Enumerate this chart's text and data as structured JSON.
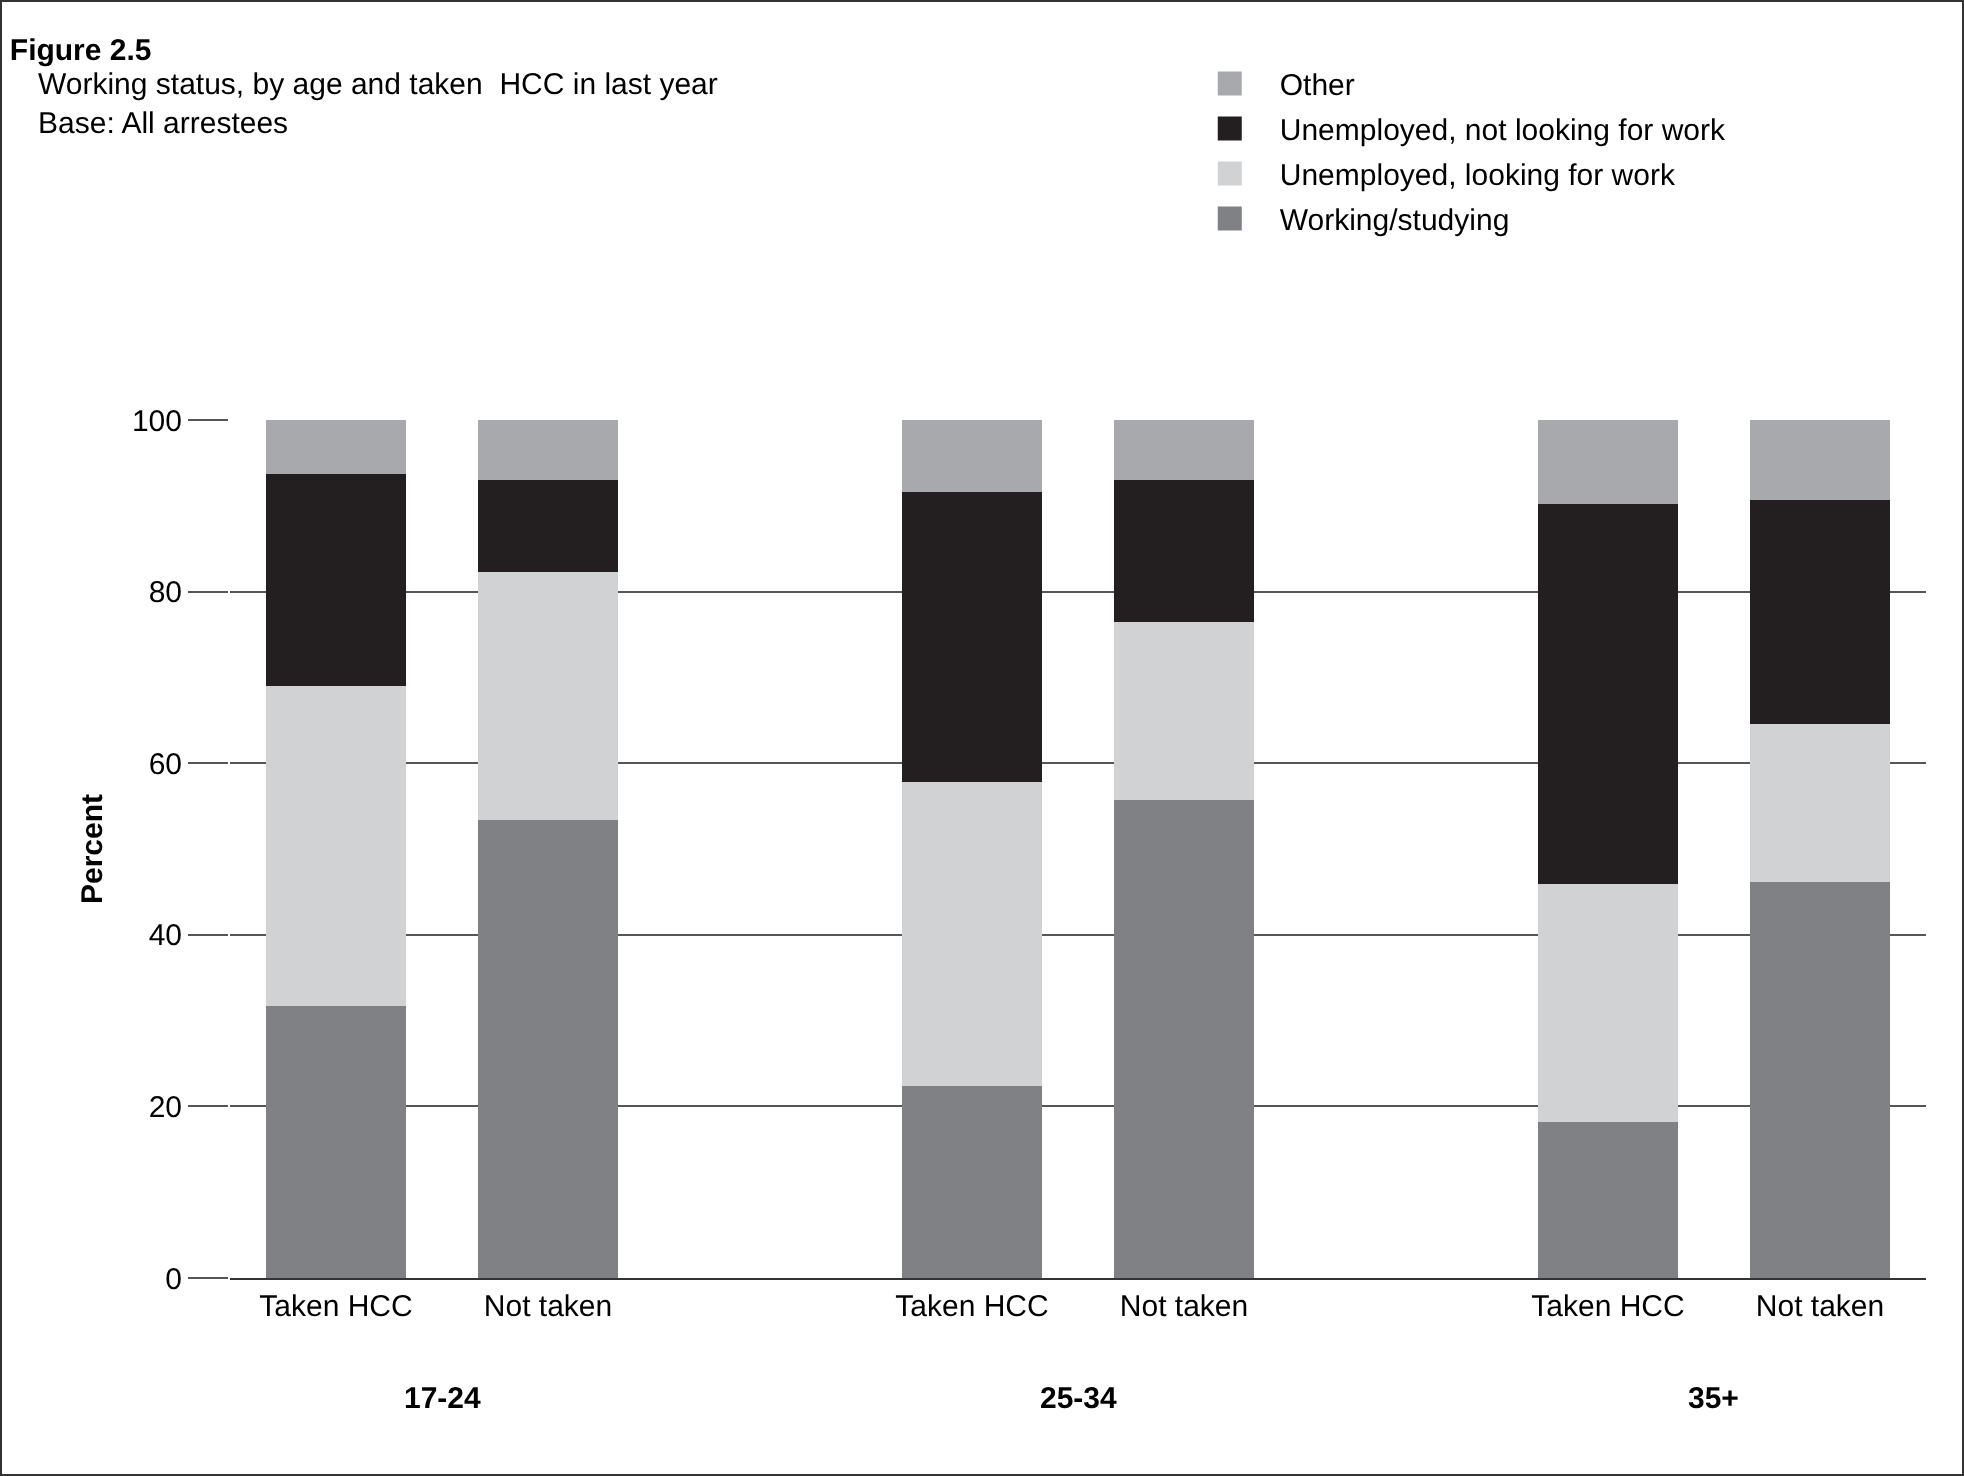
{
  "chart_data": {
    "type": "bar",
    "stacked": true,
    "title": "Figure 2.5",
    "subtitle": "Working status, by age and taken  HCC in last year\nBase: All arrestees",
    "ylabel": "Percent",
    "categories": [
      "Taken HCC",
      "Not taken",
      null,
      "Taken HCC",
      "Not taken",
      null,
      "Taken HCC",
      "Not taken"
    ],
    "series": [
      {
        "name": "Working/studying",
        "color": "#808184",
        "values": [
          31.6,
          53.4,
          null,
          22.3,
          55.7,
          null,
          18.1,
          46.2
        ]
      },
      {
        "name": "Unemployed, looking for work",
        "color": "#d1d2d4",
        "values": [
          37.4,
          29.0,
          null,
          35.5,
          20.7,
          null,
          27.9,
          18.4
        ]
      },
      {
        "name": "Unemployed, not looking for work",
        "color": "#231f20",
        "values": [
          24.6,
          10.5,
          null,
          33.9,
          16.7,
          null,
          44.1,
          26.0
        ]
      },
      {
        "name": "Other",
        "color": "#a7a9ac",
        "values": [
          6.4,
          7.1,
          null,
          8.3,
          6.9,
          null,
          9.9,
          9.4
        ]
      }
    ],
    "annotations": [
      "17-24",
      "25-34",
      "35+"
    ],
    "ylim": [
      0,
      100
    ],
    "yticks": [
      0,
      20,
      40,
      60,
      80,
      100
    ],
    "grid": "y",
    "legend": "top right"
  }
}
